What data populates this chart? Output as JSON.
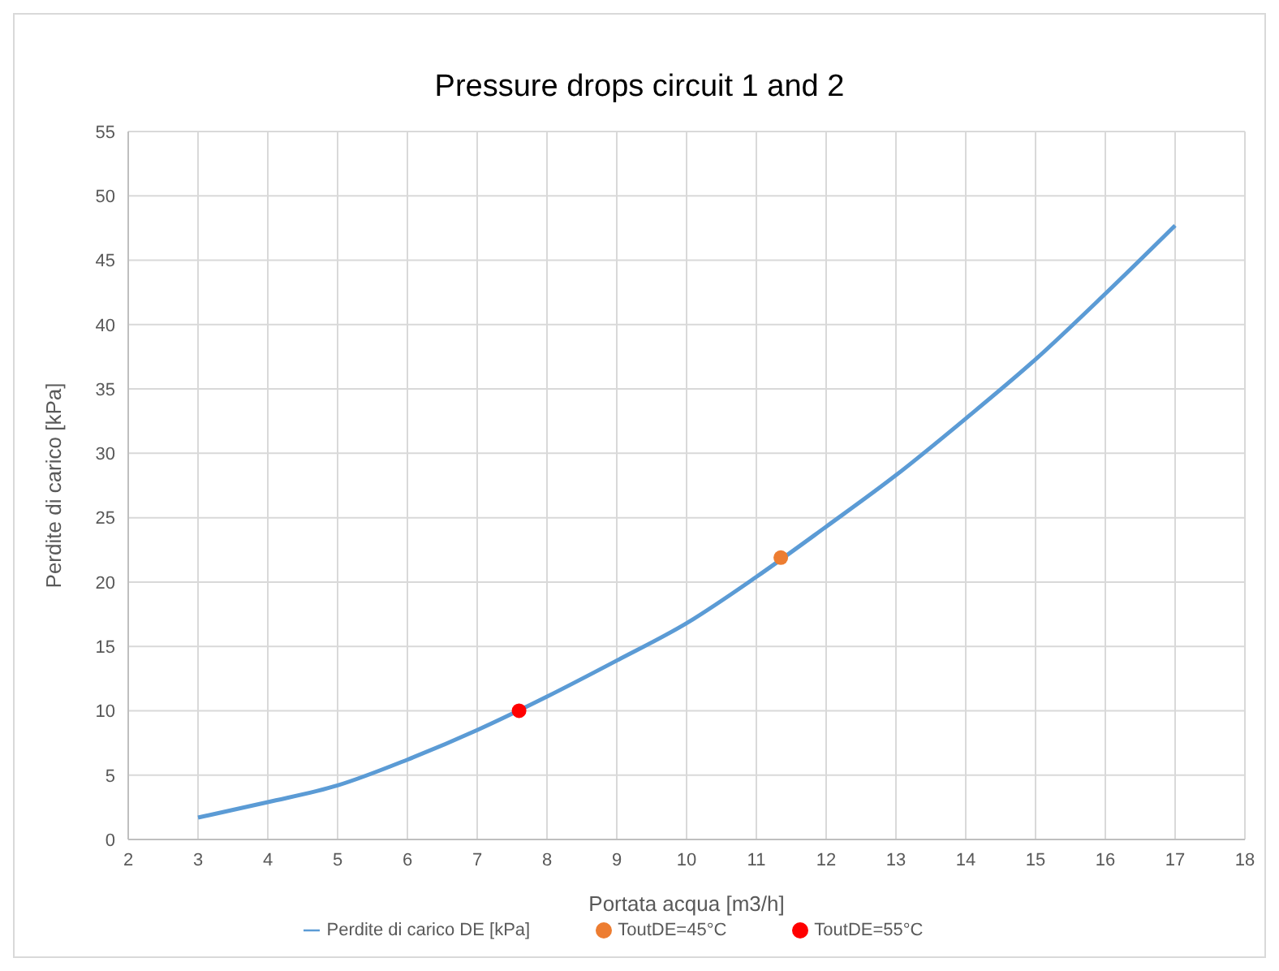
{
  "chart_data": {
    "type": "line",
    "title": "Pressure drops circuit 1 and 2",
    "xlabel": "Portata acqua [m3/h]",
    "ylabel": "Perdite di carico [kPa]",
    "xlim": [
      2,
      18
    ],
    "xticks": [
      2,
      3,
      4,
      5,
      6,
      7,
      8,
      9,
      10,
      11,
      12,
      13,
      14,
      15,
      16,
      17,
      18
    ],
    "ylim": [
      0,
      55
    ],
    "yticks": [
      0,
      5,
      10,
      15,
      20,
      25,
      30,
      35,
      40,
      45,
      50,
      55
    ],
    "grid": true,
    "legend": "bottom",
    "marker": "none",
    "series": [
      {
        "name": "Perdite di carico DE [kPa]",
        "color": "#5b9bd5",
        "x": [
          3,
          4,
          5,
          6,
          7,
          8,
          9,
          10,
          11,
          12,
          13,
          14,
          15,
          16,
          17
        ],
        "values": [
          1.7,
          2.9,
          4.2,
          6.2,
          8.5,
          11.1,
          13.9,
          16.8,
          20.4,
          24.3,
          28.3,
          32.7,
          37.3,
          42.4,
          47.7
        ]
      },
      {
        "name": "ToutDE=45°C",
        "type": "scatter",
        "color": "#ed7d31",
        "x": [
          11.35
        ],
        "values": [
          21.9
        ],
        "marker": "circle"
      },
      {
        "name": "ToutDE=55°C",
        "type": "scatter",
        "color": "#ff0000",
        "x": [
          7.6
        ],
        "values": [
          10
        ],
        "marker": "circle"
      }
    ]
  }
}
